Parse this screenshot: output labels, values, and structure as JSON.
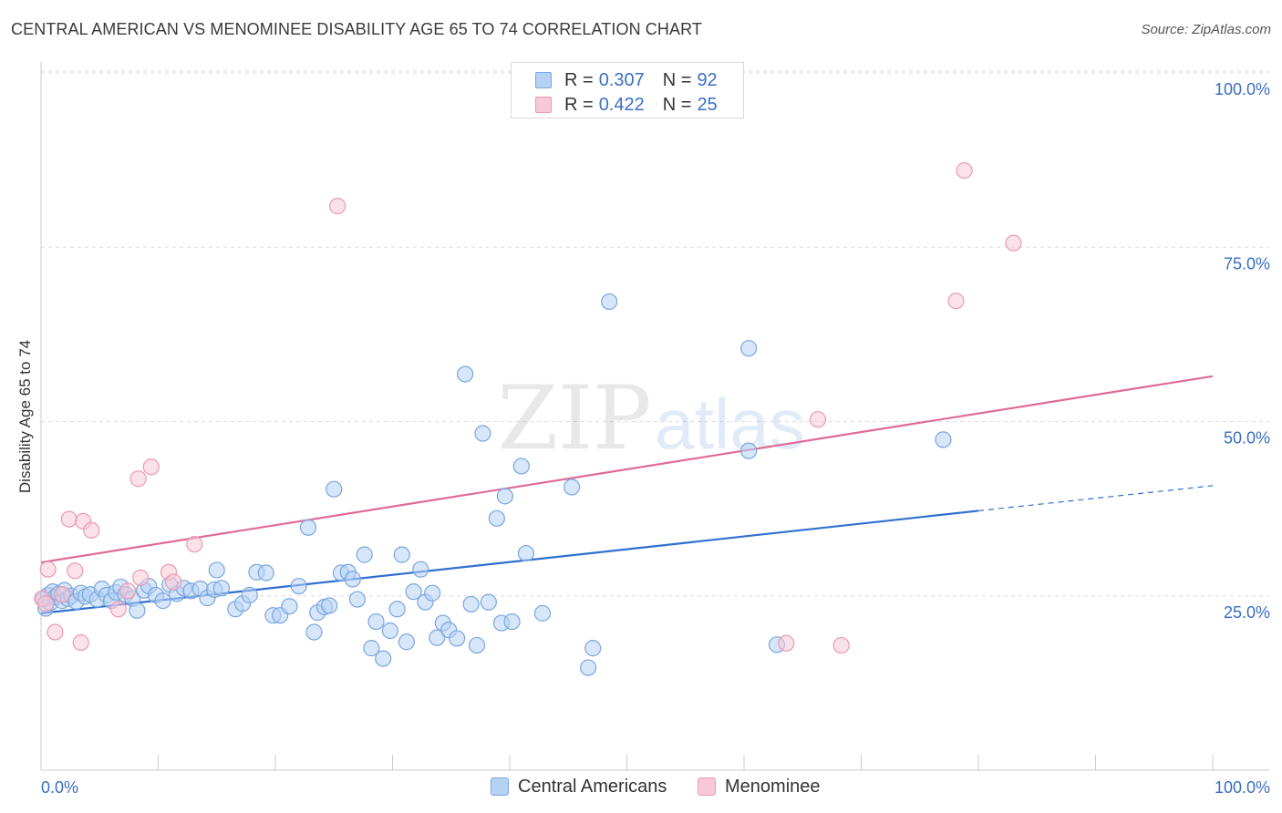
{
  "title": "CENTRAL AMERICAN VS MENOMINEE DISABILITY AGE 65 TO 74 CORRELATION CHART",
  "source": "Source: ZipAtlas.com",
  "watermark": {
    "zip": "ZIP",
    "atlas": "atlas"
  },
  "colors": {
    "blue_fill": "#b7d1f4",
    "blue_stroke": "#7aa6e0",
    "blue_line": "#2f6fd0",
    "pink_fill": "#f8c8d6",
    "pink_stroke": "#eb9ab4",
    "pink_line": "#e06a98",
    "axis_text": "#3a6fc4",
    "grid": "#dddddd"
  },
  "legend": {
    "r_label": "R =",
    "n_label": "N =",
    "series": [
      {
        "r": "0.307",
        "n": "92"
      },
      {
        "r": "0.422",
        "n": "25"
      }
    ]
  },
  "bottom_legend": [
    "Central Americans",
    "Menominee"
  ],
  "chart_data": {
    "type": "scatter",
    "title": "CENTRAL AMERICAN VS MENOMINEE DISABILITY AGE 65 TO 74 CORRELATION CHART",
    "xlabel": "",
    "ylabel": "Disability Age 65 to 74",
    "xlim": [
      0,
      100
    ],
    "ylim": [
      0,
      100
    ],
    "x_tick_labels": [
      "0.0%",
      "100.0%"
    ],
    "y_ticks": [
      {
        "value": 25,
        "label": "25.0%"
      },
      {
        "value": 50,
        "label": "50.0%"
      },
      {
        "value": 75,
        "label": "75.0%"
      },
      {
        "value": 100,
        "label": "100.0%"
      }
    ],
    "series": [
      {
        "name": "Central Americans",
        "r": 0.307,
        "n": 92,
        "trend": {
          "x0": 0,
          "y0": 22.5,
          "x1": 80,
          "y1": 37.2,
          "dash_to_x": 100,
          "dash_to_y": 40.8
        },
        "points": [
          [
            0.2,
            24.5
          ],
          [
            0.4,
            23.2
          ],
          [
            0.6,
            25.1
          ],
          [
            0.8,
            24.0
          ],
          [
            1.0,
            25.6
          ],
          [
            1.2,
            24.8
          ],
          [
            1.5,
            25.3
          ],
          [
            1.8,
            24.3
          ],
          [
            2.0,
            25.8
          ],
          [
            2.3,
            24.6
          ],
          [
            2.6,
            25.0
          ],
          [
            3.0,
            24.2
          ],
          [
            3.4,
            25.4
          ],
          [
            3.8,
            24.9
          ],
          [
            4.2,
            25.2
          ],
          [
            4.8,
            24.5
          ],
          [
            5.2,
            26.0
          ],
          [
            5.6,
            25.1
          ],
          [
            6.0,
            24.3
          ],
          [
            6.4,
            25.5
          ],
          [
            6.8,
            26.3
          ],
          [
            7.2,
            25.2
          ],
          [
            7.8,
            24.6
          ],
          [
            8.2,
            22.9
          ],
          [
            8.8,
            25.8
          ],
          [
            9.2,
            26.4
          ],
          [
            9.8,
            25.1
          ],
          [
            10.4,
            24.3
          ],
          [
            11.0,
            26.6
          ],
          [
            11.6,
            25.3
          ],
          [
            12.2,
            26.1
          ],
          [
            12.8,
            25.7
          ],
          [
            13.6,
            26.0
          ],
          [
            14.2,
            24.7
          ],
          [
            14.8,
            25.9
          ],
          [
            15.4,
            26.1
          ],
          [
            15.0,
            28.7
          ],
          [
            16.6,
            23.1
          ],
          [
            17.2,
            23.9
          ],
          [
            17.8,
            25.1
          ],
          [
            18.4,
            28.4
          ],
          [
            19.2,
            28.3
          ],
          [
            19.8,
            22.2
          ],
          [
            20.4,
            22.2
          ],
          [
            21.2,
            23.5
          ],
          [
            22.0,
            26.4
          ],
          [
            22.8,
            34.8
          ],
          [
            23.3,
            19.8
          ],
          [
            23.6,
            22.6
          ],
          [
            24.2,
            23.4
          ],
          [
            24.6,
            23.6
          ],
          [
            25.0,
            40.3
          ],
          [
            25.6,
            28.3
          ],
          [
            26.2,
            28.4
          ],
          [
            26.6,
            27.4
          ],
          [
            27.0,
            24.5
          ],
          [
            27.6,
            30.9
          ],
          [
            28.2,
            17.5
          ],
          [
            28.6,
            21.3
          ],
          [
            29.2,
            16.0
          ],
          [
            29.8,
            20.0
          ],
          [
            30.4,
            23.1
          ],
          [
            30.8,
            30.9
          ],
          [
            31.2,
            18.4
          ],
          [
            31.8,
            25.6
          ],
          [
            32.4,
            28.8
          ],
          [
            32.8,
            24.1
          ],
          [
            33.4,
            25.4
          ],
          [
            33.8,
            19.0
          ],
          [
            34.3,
            21.1
          ],
          [
            34.8,
            20.1
          ],
          [
            35.5,
            18.9
          ],
          [
            36.2,
            56.8
          ],
          [
            36.7,
            23.8
          ],
          [
            37.2,
            17.9
          ],
          [
            37.7,
            48.3
          ],
          [
            38.2,
            24.1
          ],
          [
            38.9,
            36.1
          ],
          [
            39.3,
            21.1
          ],
          [
            39.6,
            39.3
          ],
          [
            40.2,
            21.3
          ],
          [
            41.0,
            43.6
          ],
          [
            41.4,
            31.1
          ],
          [
            42.8,
            22.5
          ],
          [
            45.3,
            40.6
          ],
          [
            46.7,
            14.7
          ],
          [
            47.1,
            17.5
          ],
          [
            48.5,
            67.2
          ],
          [
            60.4,
            60.5
          ],
          [
            60.4,
            45.8
          ],
          [
            62.8,
            18.0
          ],
          [
            77.0,
            47.4
          ]
        ]
      },
      {
        "name": "Menominee",
        "r": 0.422,
        "n": 25,
        "trend": {
          "x0": 0,
          "y0": 29.8,
          "x1": 100,
          "y1": 56.5
        },
        "points": [
          [
            0.1,
            24.6
          ],
          [
            0.4,
            23.9
          ],
          [
            0.6,
            28.8
          ],
          [
            1.2,
            19.8
          ],
          [
            1.8,
            25.2
          ],
          [
            2.4,
            36.0
          ],
          [
            2.9,
            28.6
          ],
          [
            3.4,
            18.3
          ],
          [
            3.6,
            35.7
          ],
          [
            4.3,
            34.4
          ],
          [
            6.6,
            23.1
          ],
          [
            7.4,
            25.7
          ],
          [
            8.3,
            41.8
          ],
          [
            8.5,
            27.6
          ],
          [
            9.4,
            43.5
          ],
          [
            10.9,
            28.4
          ],
          [
            11.3,
            27.0
          ],
          [
            13.1,
            32.4
          ],
          [
            25.3,
            80.9
          ],
          [
            63.6,
            18.2
          ],
          [
            66.3,
            50.3
          ],
          [
            68.3,
            17.9
          ],
          [
            78.1,
            67.3
          ],
          [
            78.8,
            86.0
          ],
          [
            83.0,
            75.6
          ]
        ]
      }
    ]
  }
}
